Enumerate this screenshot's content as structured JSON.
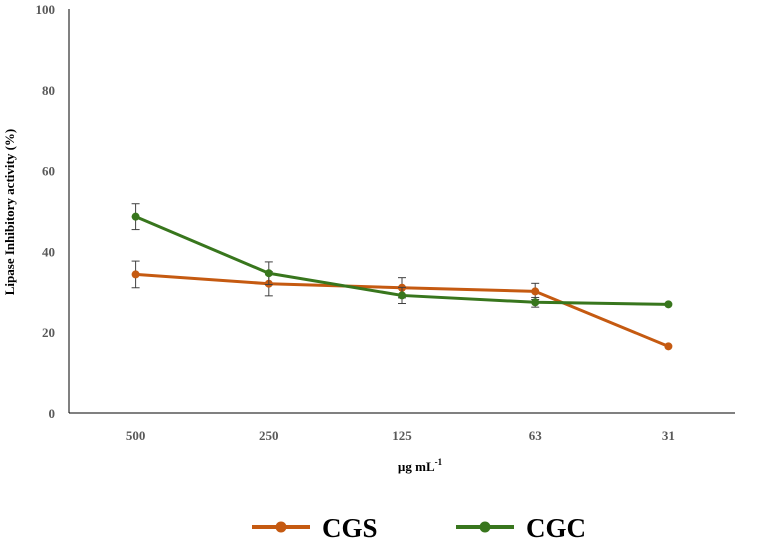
{
  "chart_data": {
    "type": "line",
    "title": "",
    "xlabel": "µg mL",
    "xlabel_superscript": "-1",
    "ylabel": "Lipase Inhibitory activity (%)",
    "ylim": [
      0,
      100
    ],
    "yticks": [
      0,
      20,
      40,
      60,
      80,
      100
    ],
    "categories": [
      "500",
      "250",
      "125",
      "63",
      "31"
    ],
    "grid": false,
    "legend_position": "bottom",
    "series": [
      {
        "name": "CGS",
        "color": "#C55A11",
        "values": [
          34.3,
          32.0,
          31.0,
          30.1,
          16.5
        ],
        "errors": [
          3.3,
          3.0,
          2.5,
          2.0,
          0
        ]
      },
      {
        "name": "CGC",
        "color": "#38761D",
        "values": [
          48.6,
          34.6,
          29.1,
          27.4,
          26.9
        ],
        "errors": [
          3.2,
          2.8,
          2.0,
          1.2,
          0
        ]
      }
    ]
  }
}
